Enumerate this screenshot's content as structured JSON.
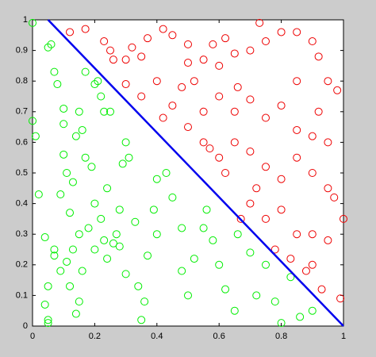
{
  "chart_data": {
    "type": "scatter",
    "xlim": [
      0,
      1
    ],
    "ylim": [
      0,
      1
    ],
    "xticks": [
      0,
      0.2,
      0.4,
      0.6,
      0.8,
      1
    ],
    "yticks": [
      0,
      0.1,
      0.2,
      0.3,
      0.4,
      0.5,
      0.6,
      0.7,
      0.8,
      0.9,
      1
    ],
    "grid": false,
    "series": [
      {
        "color": "#00ee00",
        "x": [
          0.0,
          0.05,
          0.06,
          0.07,
          0.08,
          0.0,
          0.01,
          0.02,
          0.04,
          0.07,
          0.07,
          0.05,
          0.04,
          0.05,
          0.05,
          0.1,
          0.1,
          0.1,
          0.11,
          0.13,
          0.12,
          0.09,
          0.14,
          0.15,
          0.16,
          0.17,
          0.19,
          0.2,
          0.18,
          0.15,
          0.13,
          0.11,
          0.09,
          0.12,
          0.15,
          0.14,
          0.16,
          0.2,
          0.22,
          0.24,
          0.23,
          0.24,
          0.26,
          0.28,
          0.29,
          0.3,
          0.31,
          0.28,
          0.3,
          0.34,
          0.36,
          0.35,
          0.37,
          0.39,
          0.4,
          0.43,
          0.45,
          0.48,
          0.48,
          0.5,
          0.52,
          0.55,
          0.56,
          0.58,
          0.6,
          0.62,
          0.65,
          0.66,
          0.7,
          0.72,
          0.75,
          0.78,
          0.8,
          0.83,
          0.86,
          0.9,
          0.2,
          0.22,
          0.23,
          0.25,
          0.17,
          0.21,
          0.27,
          0.33,
          0.4
        ],
        "y": [
          0.99,
          0.91,
          0.92,
          0.83,
          0.79,
          0.67,
          0.62,
          0.43,
          0.29,
          0.25,
          0.23,
          0.13,
          0.07,
          0.02,
          0.01,
          0.71,
          0.66,
          0.56,
          0.5,
          0.47,
          0.37,
          0.43,
          0.62,
          0.7,
          0.64,
          0.55,
          0.52,
          0.4,
          0.32,
          0.3,
          0.25,
          0.21,
          0.18,
          0.13,
          0.08,
          0.04,
          0.18,
          0.25,
          0.35,
          0.45,
          0.28,
          0.22,
          0.27,
          0.26,
          0.53,
          0.6,
          0.55,
          0.38,
          0.17,
          0.13,
          0.08,
          0.02,
          0.23,
          0.38,
          0.48,
          0.5,
          0.42,
          0.32,
          0.18,
          0.1,
          0.22,
          0.32,
          0.38,
          0.28,
          0.2,
          0.12,
          0.05,
          0.3,
          0.24,
          0.1,
          0.2,
          0.08,
          0.01,
          0.16,
          0.03,
          0.05,
          0.79,
          0.75,
          0.7,
          0.7,
          0.83,
          0.8,
          0.3,
          0.34,
          0.3
        ]
      },
      {
        "color": "#ee0000",
        "x": [
          0.12,
          0.17,
          0.23,
          0.26,
          0.3,
          0.32,
          0.35,
          0.37,
          0.42,
          0.45,
          0.5,
          0.5,
          0.52,
          0.48,
          0.55,
          0.58,
          0.6,
          0.62,
          0.65,
          0.7,
          0.73,
          0.75,
          0.8,
          0.85,
          0.9,
          0.92,
          0.95,
          0.98,
          0.3,
          0.35,
          0.4,
          0.45,
          0.55,
          0.6,
          0.65,
          0.7,
          0.75,
          0.8,
          0.85,
          0.9,
          0.95,
          0.5,
          0.55,
          0.57,
          0.6,
          0.65,
          0.7,
          0.75,
          0.8,
          0.85,
          0.9,
          0.95,
          0.97,
          1.0,
          0.7,
          0.75,
          0.8,
          0.85,
          0.9,
          0.95,
          0.78,
          0.83,
          0.9,
          0.93,
          0.99,
          0.88,
          0.67,
          0.72,
          0.62,
          0.42,
          0.25,
          0.66,
          0.85,
          0.92
        ],
        "y": [
          0.96,
          0.97,
          0.93,
          0.87,
          0.87,
          0.91,
          0.88,
          0.94,
          0.97,
          0.95,
          0.92,
          0.86,
          0.8,
          0.78,
          0.87,
          0.92,
          0.85,
          0.94,
          0.89,
          0.9,
          0.99,
          0.93,
          0.96,
          0.96,
          0.93,
          0.88,
          0.8,
          0.77,
          0.79,
          0.75,
          0.8,
          0.72,
          0.7,
          0.75,
          0.7,
          0.74,
          0.68,
          0.72,
          0.64,
          0.62,
          0.6,
          0.65,
          0.6,
          0.58,
          0.55,
          0.6,
          0.57,
          0.52,
          0.48,
          0.55,
          0.5,
          0.45,
          0.42,
          0.35,
          0.4,
          0.35,
          0.38,
          0.3,
          0.3,
          0.28,
          0.25,
          0.22,
          0.2,
          0.12,
          0.09,
          0.18,
          0.35,
          0.45,
          0.5,
          0.68,
          0.9,
          0.78,
          0.8,
          0.7
        ]
      }
    ],
    "line": {
      "color": "#0000ee",
      "x": [
        0.05,
        1
      ],
      "y": [
        1,
        0
      ]
    }
  }
}
